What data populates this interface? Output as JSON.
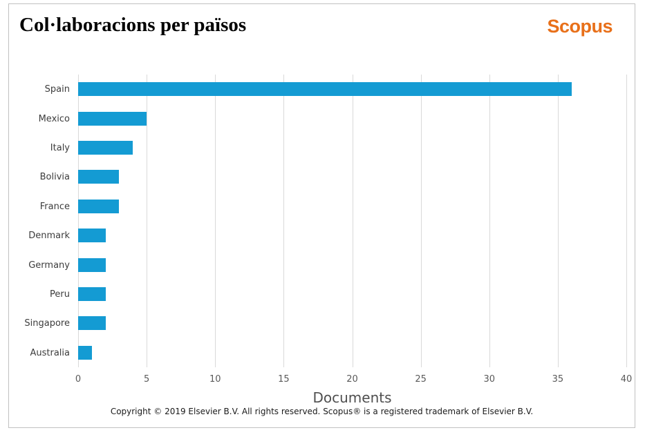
{
  "header": {
    "title": "Col·laboracions per països",
    "logo": "Scopus"
  },
  "chart_data": {
    "type": "bar",
    "orientation": "horizontal",
    "title": "Col·laboracions per països",
    "categories": [
      "Spain",
      "Mexico",
      "Italy",
      "Bolivia",
      "France",
      "Denmark",
      "Germany",
      "Peru",
      "Singapore",
      "Australia"
    ],
    "values": [
      36,
      5,
      4,
      3,
      3,
      2,
      2,
      2,
      2,
      1
    ],
    "xlabel": "Documents",
    "ylabel": "",
    "xlim": [
      0,
      40
    ],
    "xticks": [
      0,
      5,
      10,
      15,
      20,
      25,
      30,
      35,
      40
    ],
    "grid": "vertical",
    "legend": "none"
  },
  "footer": {
    "copyright": "Copyright © 2019 Elsevier B.V. All rights reserved. Scopus® is a registered trademark of Elsevier B.V."
  },
  "colors": {
    "bar": "#149bd3",
    "grid": "#d9d9d9",
    "logo_orange": "#e8701a",
    "frame_border": "#c0c0c0",
    "tick_text": "#595959",
    "label_text": "#3c3c3c"
  }
}
